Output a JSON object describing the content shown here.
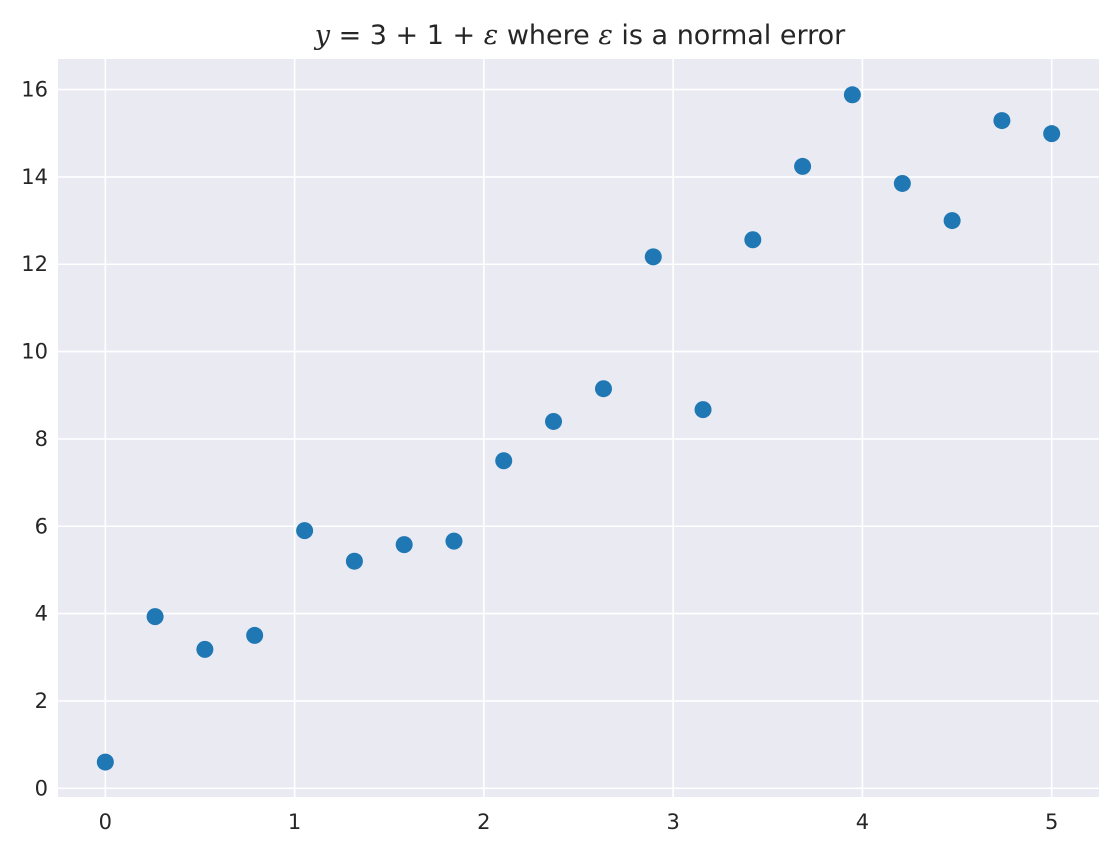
{
  "chart_data": {
    "type": "scatter",
    "title_parts": [
      {
        "text": "y",
        "math": true
      },
      {
        "text": " = 3 + 1 + ",
        "math": "upright"
      },
      {
        "text": "ε",
        "math": true
      },
      {
        "text": " where ",
        "math": false
      },
      {
        "text": "ε",
        "math": true
      },
      {
        "text": " is a normal error",
        "math": false
      }
    ],
    "xlabel": "",
    "ylabel": "",
    "xlim": [
      -0.25,
      5.25
    ],
    "ylim": [
      -0.2,
      16.7
    ],
    "xticks": [
      0,
      1,
      2,
      3,
      4,
      5
    ],
    "yticks": [
      0,
      2,
      4,
      6,
      8,
      10,
      12,
      14,
      16
    ],
    "grid": true,
    "marker_color": "#1f77b4",
    "background_color": "#eaeaf2",
    "x": [
      0.0,
      0.263,
      0.526,
      0.789,
      1.053,
      1.316,
      1.579,
      1.842,
      2.105,
      2.368,
      2.632,
      2.895,
      3.158,
      3.421,
      3.684,
      3.947,
      4.211,
      4.474,
      4.737,
      5.0
    ],
    "y": [
      0.6,
      3.93,
      3.18,
      3.5,
      5.9,
      5.2,
      5.58,
      5.66,
      7.5,
      8.4,
      9.15,
      12.17,
      8.67,
      12.56,
      14.24,
      15.88,
      13.85,
      13.0,
      15.29,
      14.99
    ]
  }
}
